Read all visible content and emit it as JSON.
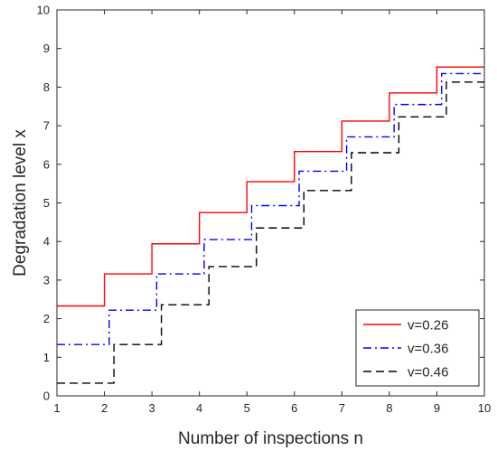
{
  "chart_data": {
    "type": "line",
    "step": "post",
    "title": "",
    "xlabel": "Number of inspections n",
    "ylabel": "Degradation level x",
    "xlim": [
      1,
      10
    ],
    "ylim": [
      0,
      10
    ],
    "xticks": [
      1,
      2,
      3,
      4,
      5,
      6,
      7,
      8,
      9,
      10
    ],
    "yticks": [
      0,
      1,
      2,
      3,
      4,
      5,
      6,
      7,
      8,
      9,
      10
    ],
    "grid": false,
    "box": true,
    "legend_location": "bottom-right",
    "series": [
      {
        "name": "v=0.26",
        "color": "#ff0000",
        "linestyle": "solid",
        "x": [
          1,
          2,
          3,
          4,
          5,
          6,
          7,
          8,
          9,
          10
        ],
        "y": [
          2.33,
          3.16,
          3.94,
          4.75,
          5.55,
          6.33,
          7.12,
          7.85,
          8.52,
          8.52
        ]
      },
      {
        "name": "v=0.36",
        "color": "#0000ff",
        "linestyle": "dashdot",
        "x": [
          1,
          2.1,
          3.1,
          4.1,
          5.1,
          6.1,
          7.1,
          8.1,
          9.1,
          10
        ],
        "y": [
          1.33,
          2.22,
          3.16,
          4.05,
          4.93,
          5.82,
          6.71,
          7.55,
          8.35,
          8.35
        ]
      },
      {
        "name": "v=0.46",
        "color": "#000000",
        "linestyle": "dashed",
        "x": [
          1,
          2.2,
          3.2,
          4.2,
          5.2,
          6.2,
          7.2,
          8.2,
          9.2,
          10
        ],
        "y": [
          0.33,
          1.33,
          2.36,
          3.35,
          4.35,
          5.32,
          6.3,
          7.23,
          8.13,
          8.13
        ]
      }
    ]
  }
}
